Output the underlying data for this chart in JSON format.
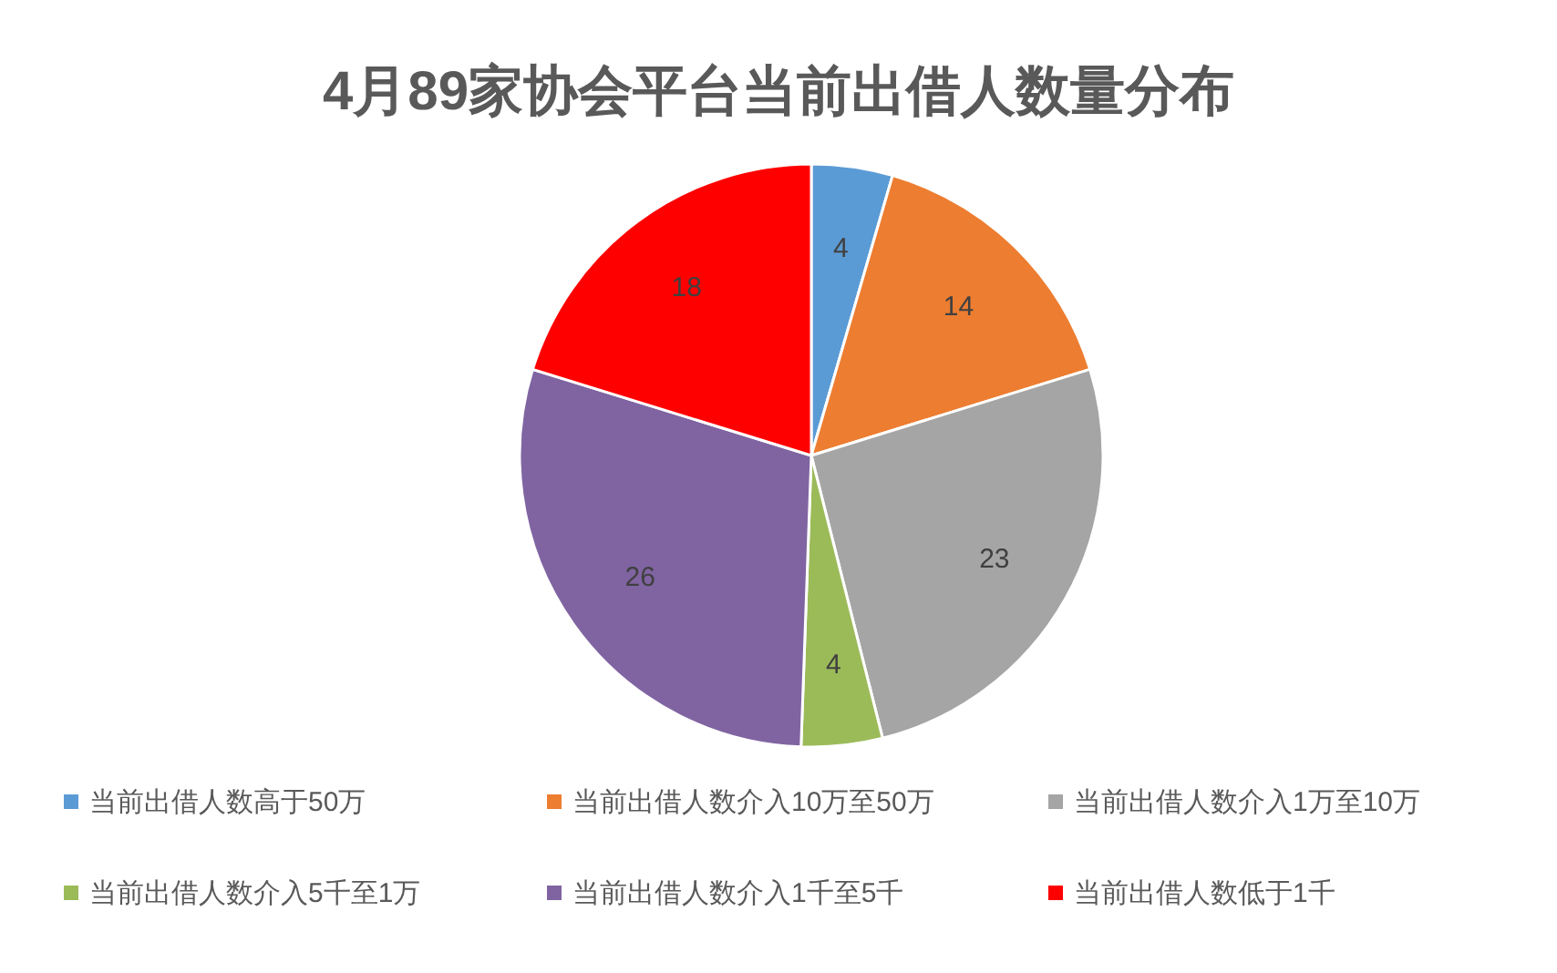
{
  "chart_data": {
    "type": "pie",
    "title": "4月89家协会平台当前出借人数量分布",
    "categories": [
      "当前出借人数高于50万",
      "当前出借人数介入10万至50万",
      "当前出借人数介入1万至10万",
      "当前出借人数介入5千至1万",
      "当前出借人数介入1千至5千",
      "当前出借人数低于1千"
    ],
    "values": [
      4,
      14,
      23,
      4,
      26,
      18
    ],
    "colors": [
      "#5b9bd5",
      "#ed7d31",
      "#a5a5a5",
      "#9bbb59",
      "#8064a2",
      "#ff0000"
    ],
    "data_labels": true,
    "legend": "bottom"
  }
}
